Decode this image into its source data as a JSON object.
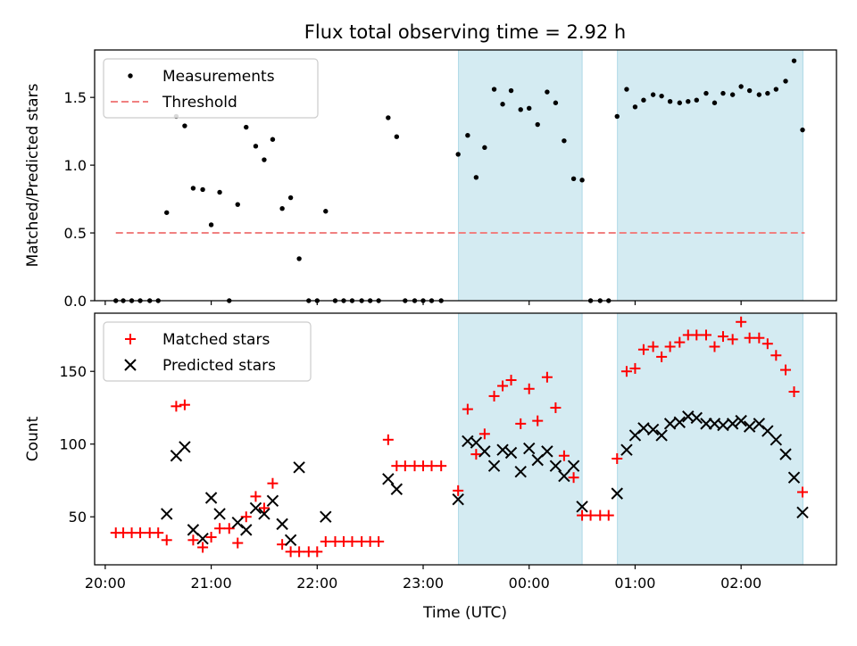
{
  "chart_data": {
    "type": "scatter",
    "title": "Flux total observing time = 2.92 h",
    "xlabel": "Time (UTC)",
    "x_unit": "hours after 20:00 UTC",
    "xlim": [
      -0.1,
      6.9
    ],
    "xticks": [
      {
        "value": 0,
        "label": "20:00"
      },
      {
        "value": 1,
        "label": "21:00"
      },
      {
        "value": 2,
        "label": "22:00"
      },
      {
        "value": 3,
        "label": "23:00"
      },
      {
        "value": 4,
        "label": "00:00"
      },
      {
        "value": 5,
        "label": "01:00"
      },
      {
        "value": 6,
        "label": "02:00"
      }
    ],
    "shaded_intervals": [
      {
        "start": "23:20",
        "end": "00:30",
        "color": "#add8e6"
      },
      {
        "start": "00:50",
        "end": "02:35",
        "color": "#add8e6"
      }
    ],
    "panels": [
      {
        "name": "ratio",
        "ylabel": "Matched/Predicted stars",
        "ylim": [
          0,
          1.85
        ],
        "yticks": [
          "0.0",
          "0.5",
          "1.0",
          "1.5"
        ],
        "ytick_values": [
          0,
          0.5,
          1.0,
          1.5
        ],
        "legend": {
          "position": "upper-left",
          "entries": [
            "Measurements",
            "Threshold"
          ]
        },
        "threshold": {
          "name": "Threshold",
          "value": 0.5,
          "xrange": [
            0.1,
            6.6
          ],
          "color": "#f08080"
        },
        "series": [
          {
            "name": "Measurements",
            "marker": "dot",
            "color": "#000000",
            "points": [
              [
                0.1,
                0
              ],
              [
                0.17,
                0
              ],
              [
                0.25,
                0
              ],
              [
                0.33,
                0
              ],
              [
                0.42,
                0
              ],
              [
                0.5,
                0
              ],
              [
                0.58,
                0.65
              ],
              [
                0.67,
                1.36
              ],
              [
                0.75,
                1.29
              ],
              [
                0.83,
                0.83
              ],
              [
                0.92,
                0.82
              ],
              [
                1.0,
                0.56
              ],
              [
                1.08,
                0.8
              ],
              [
                1.17,
                0
              ],
              [
                1.25,
                0.71
              ],
              [
                1.33,
                1.28
              ],
              [
                1.42,
                1.14
              ],
              [
                1.5,
                1.04
              ],
              [
                1.58,
                1.19
              ],
              [
                1.67,
                0.68
              ],
              [
                1.75,
                0.76
              ],
              [
                1.83,
                0.31
              ],
              [
                1.92,
                0
              ],
              [
                2.0,
                0
              ],
              [
                2.08,
                0.66
              ],
              [
                2.17,
                0
              ],
              [
                2.25,
                0
              ],
              [
                2.33,
                0
              ],
              [
                2.42,
                0
              ],
              [
                2.5,
                0
              ],
              [
                2.58,
                0
              ],
              [
                2.67,
                1.35
              ],
              [
                2.75,
                1.21
              ],
              [
                2.83,
                0
              ],
              [
                2.92,
                0
              ],
              [
                3.0,
                0
              ],
              [
                3.08,
                0
              ],
              [
                3.17,
                0
              ],
              [
                3.33,
                1.08
              ],
              [
                3.42,
                1.22
              ],
              [
                3.5,
                0.91
              ],
              [
                3.58,
                1.13
              ],
              [
                3.67,
                1.56
              ],
              [
                3.75,
                1.45
              ],
              [
                3.83,
                1.55
              ],
              [
                3.92,
                1.41
              ],
              [
                4.0,
                1.42
              ],
              [
                4.08,
                1.3
              ],
              [
                4.17,
                1.54
              ],
              [
                4.25,
                1.46
              ],
              [
                4.33,
                1.18
              ],
              [
                4.42,
                0.9
              ],
              [
                4.5,
                0.89
              ],
              [
                4.58,
                0
              ],
              [
                4.67,
                0
              ],
              [
                4.75,
                0
              ],
              [
                4.83,
                1.36
              ],
              [
                4.92,
                1.56
              ],
              [
                5.0,
                1.43
              ],
              [
                5.08,
                1.48
              ],
              [
                5.17,
                1.52
              ],
              [
                5.25,
                1.51
              ],
              [
                5.33,
                1.47
              ],
              [
                5.42,
                1.46
              ],
              [
                5.5,
                1.47
              ],
              [
                5.58,
                1.48
              ],
              [
                5.67,
                1.53
              ],
              [
                5.75,
                1.46
              ],
              [
                5.83,
                1.53
              ],
              [
                5.92,
                1.52
              ],
              [
                6.0,
                1.58
              ],
              [
                6.08,
                1.55
              ],
              [
                6.17,
                1.52
              ],
              [
                6.25,
                1.53
              ],
              [
                6.33,
                1.56
              ],
              [
                6.42,
                1.62
              ],
              [
                6.5,
                1.77
              ],
              [
                6.58,
                1.26
              ]
            ]
          }
        ]
      },
      {
        "name": "counts",
        "ylabel": "Count",
        "ylim": [
          17,
          190
        ],
        "yticks": [
          "50",
          "100",
          "150"
        ],
        "ytick_values": [
          50,
          100,
          150
        ],
        "legend": {
          "position": "upper-left",
          "entries": [
            "Matched stars",
            "Predicted stars"
          ]
        },
        "series": [
          {
            "name": "Matched stars",
            "marker": "plus",
            "color": "#ff0000",
            "points": [
              [
                0.1,
                39
              ],
              [
                0.17,
                39
              ],
              [
                0.25,
                39
              ],
              [
                0.33,
                39
              ],
              [
                0.42,
                39
              ],
              [
                0.5,
                39
              ],
              [
                0.58,
                34
              ],
              [
                0.67,
                126
              ],
              [
                0.75,
                127
              ],
              [
                0.83,
                34
              ],
              [
                0.92,
                29
              ],
              [
                1.0,
                36
              ],
              [
                1.08,
                42
              ],
              [
                1.17,
                42
              ],
              [
                1.25,
                32
              ],
              [
                1.33,
                50
              ],
              [
                1.42,
                64
              ],
              [
                1.5,
                56
              ],
              [
                1.58,
                73
              ],
              [
                1.67,
                31
              ],
              [
                1.75,
                26
              ],
              [
                1.83,
                26
              ],
              [
                1.92,
                26
              ],
              [
                2.0,
                26
              ],
              [
                2.08,
                33
              ],
              [
                2.17,
                33
              ],
              [
                2.25,
                33
              ],
              [
                2.33,
                33
              ],
              [
                2.42,
                33
              ],
              [
                2.5,
                33
              ],
              [
                2.58,
                33
              ],
              [
                2.67,
                103
              ],
              [
                2.75,
                85
              ],
              [
                2.83,
                85
              ],
              [
                2.92,
                85
              ],
              [
                3.0,
                85
              ],
              [
                3.08,
                85
              ],
              [
                3.17,
                85
              ],
              [
                3.33,
                68
              ],
              [
                3.42,
                124
              ],
              [
                3.5,
                93
              ],
              [
                3.58,
                107
              ],
              [
                3.67,
                133
              ],
              [
                3.75,
                140
              ],
              [
                3.83,
                144
              ],
              [
                3.92,
                114
              ],
              [
                4.0,
                138
              ],
              [
                4.08,
                116
              ],
              [
                4.17,
                146
              ],
              [
                4.25,
                125
              ],
              [
                4.33,
                92
              ],
              [
                4.42,
                77
              ],
              [
                4.5,
                51
              ],
              [
                4.58,
                51
              ],
              [
                4.67,
                51
              ],
              [
                4.75,
                51
              ],
              [
                4.83,
                90
              ],
              [
                4.92,
                150
              ],
              [
                5.0,
                152
              ],
              [
                5.08,
                165
              ],
              [
                5.17,
                167
              ],
              [
                5.25,
                160
              ],
              [
                5.33,
                167
              ],
              [
                5.42,
                170
              ],
              [
                5.5,
                175
              ],
              [
                5.58,
                175
              ],
              [
                5.67,
                175
              ],
              [
                5.75,
                167
              ],
              [
                5.83,
                174
              ],
              [
                5.92,
                172
              ],
              [
                6.0,
                184
              ],
              [
                6.08,
                173
              ],
              [
                6.17,
                173
              ],
              [
                6.25,
                169
              ],
              [
                6.33,
                161
              ],
              [
                6.42,
                151
              ],
              [
                6.5,
                136
              ],
              [
                6.58,
                67
              ]
            ]
          },
          {
            "name": "Predicted stars",
            "marker": "x",
            "color": "#000000",
            "points": [
              [
                0.58,
                52
              ],
              [
                0.67,
                92
              ],
              [
                0.75,
                98
              ],
              [
                0.83,
                41
              ],
              [
                0.92,
                35
              ],
              [
                1.0,
                63
              ],
              [
                1.08,
                52
              ],
              [
                1.25,
                46
              ],
              [
                1.33,
                41
              ],
              [
                1.42,
                56
              ],
              [
                1.5,
                52
              ],
              [
                1.58,
                61
              ],
              [
                1.67,
                45
              ],
              [
                1.75,
                34
              ],
              [
                1.83,
                84
              ],
              [
                2.08,
                50
              ],
              [
                2.67,
                76
              ],
              [
                2.75,
                69
              ],
              [
                3.33,
                62
              ],
              [
                3.42,
                102
              ],
              [
                3.5,
                101
              ],
              [
                3.58,
                95
              ],
              [
                3.67,
                85
              ],
              [
                3.75,
                96
              ],
              [
                3.83,
                94
              ],
              [
                3.92,
                81
              ],
              [
                4.0,
                97
              ],
              [
                4.08,
                89
              ],
              [
                4.17,
                95
              ],
              [
                4.25,
                85
              ],
              [
                4.33,
                78
              ],
              [
                4.42,
                85
              ],
              [
                4.5,
                57
              ],
              [
                4.83,
                66
              ],
              [
                4.92,
                96
              ],
              [
                5.0,
                106
              ],
              [
                5.08,
                111
              ],
              [
                5.17,
                110
              ],
              [
                5.25,
                106
              ],
              [
                5.33,
                114
              ],
              [
                5.42,
                115
              ],
              [
                5.5,
                119
              ],
              [
                5.58,
                118
              ],
              [
                5.67,
                114
              ],
              [
                5.75,
                114
              ],
              [
                5.83,
                113
              ],
              [
                5.92,
                114
              ],
              [
                6.0,
                116
              ],
              [
                6.08,
                112
              ],
              [
                6.17,
                114
              ],
              [
                6.25,
                109
              ],
              [
                6.33,
                103
              ],
              [
                6.42,
                93
              ],
              [
                6.5,
                77
              ],
              [
                6.58,
                53
              ]
            ]
          }
        ]
      }
    ]
  }
}
